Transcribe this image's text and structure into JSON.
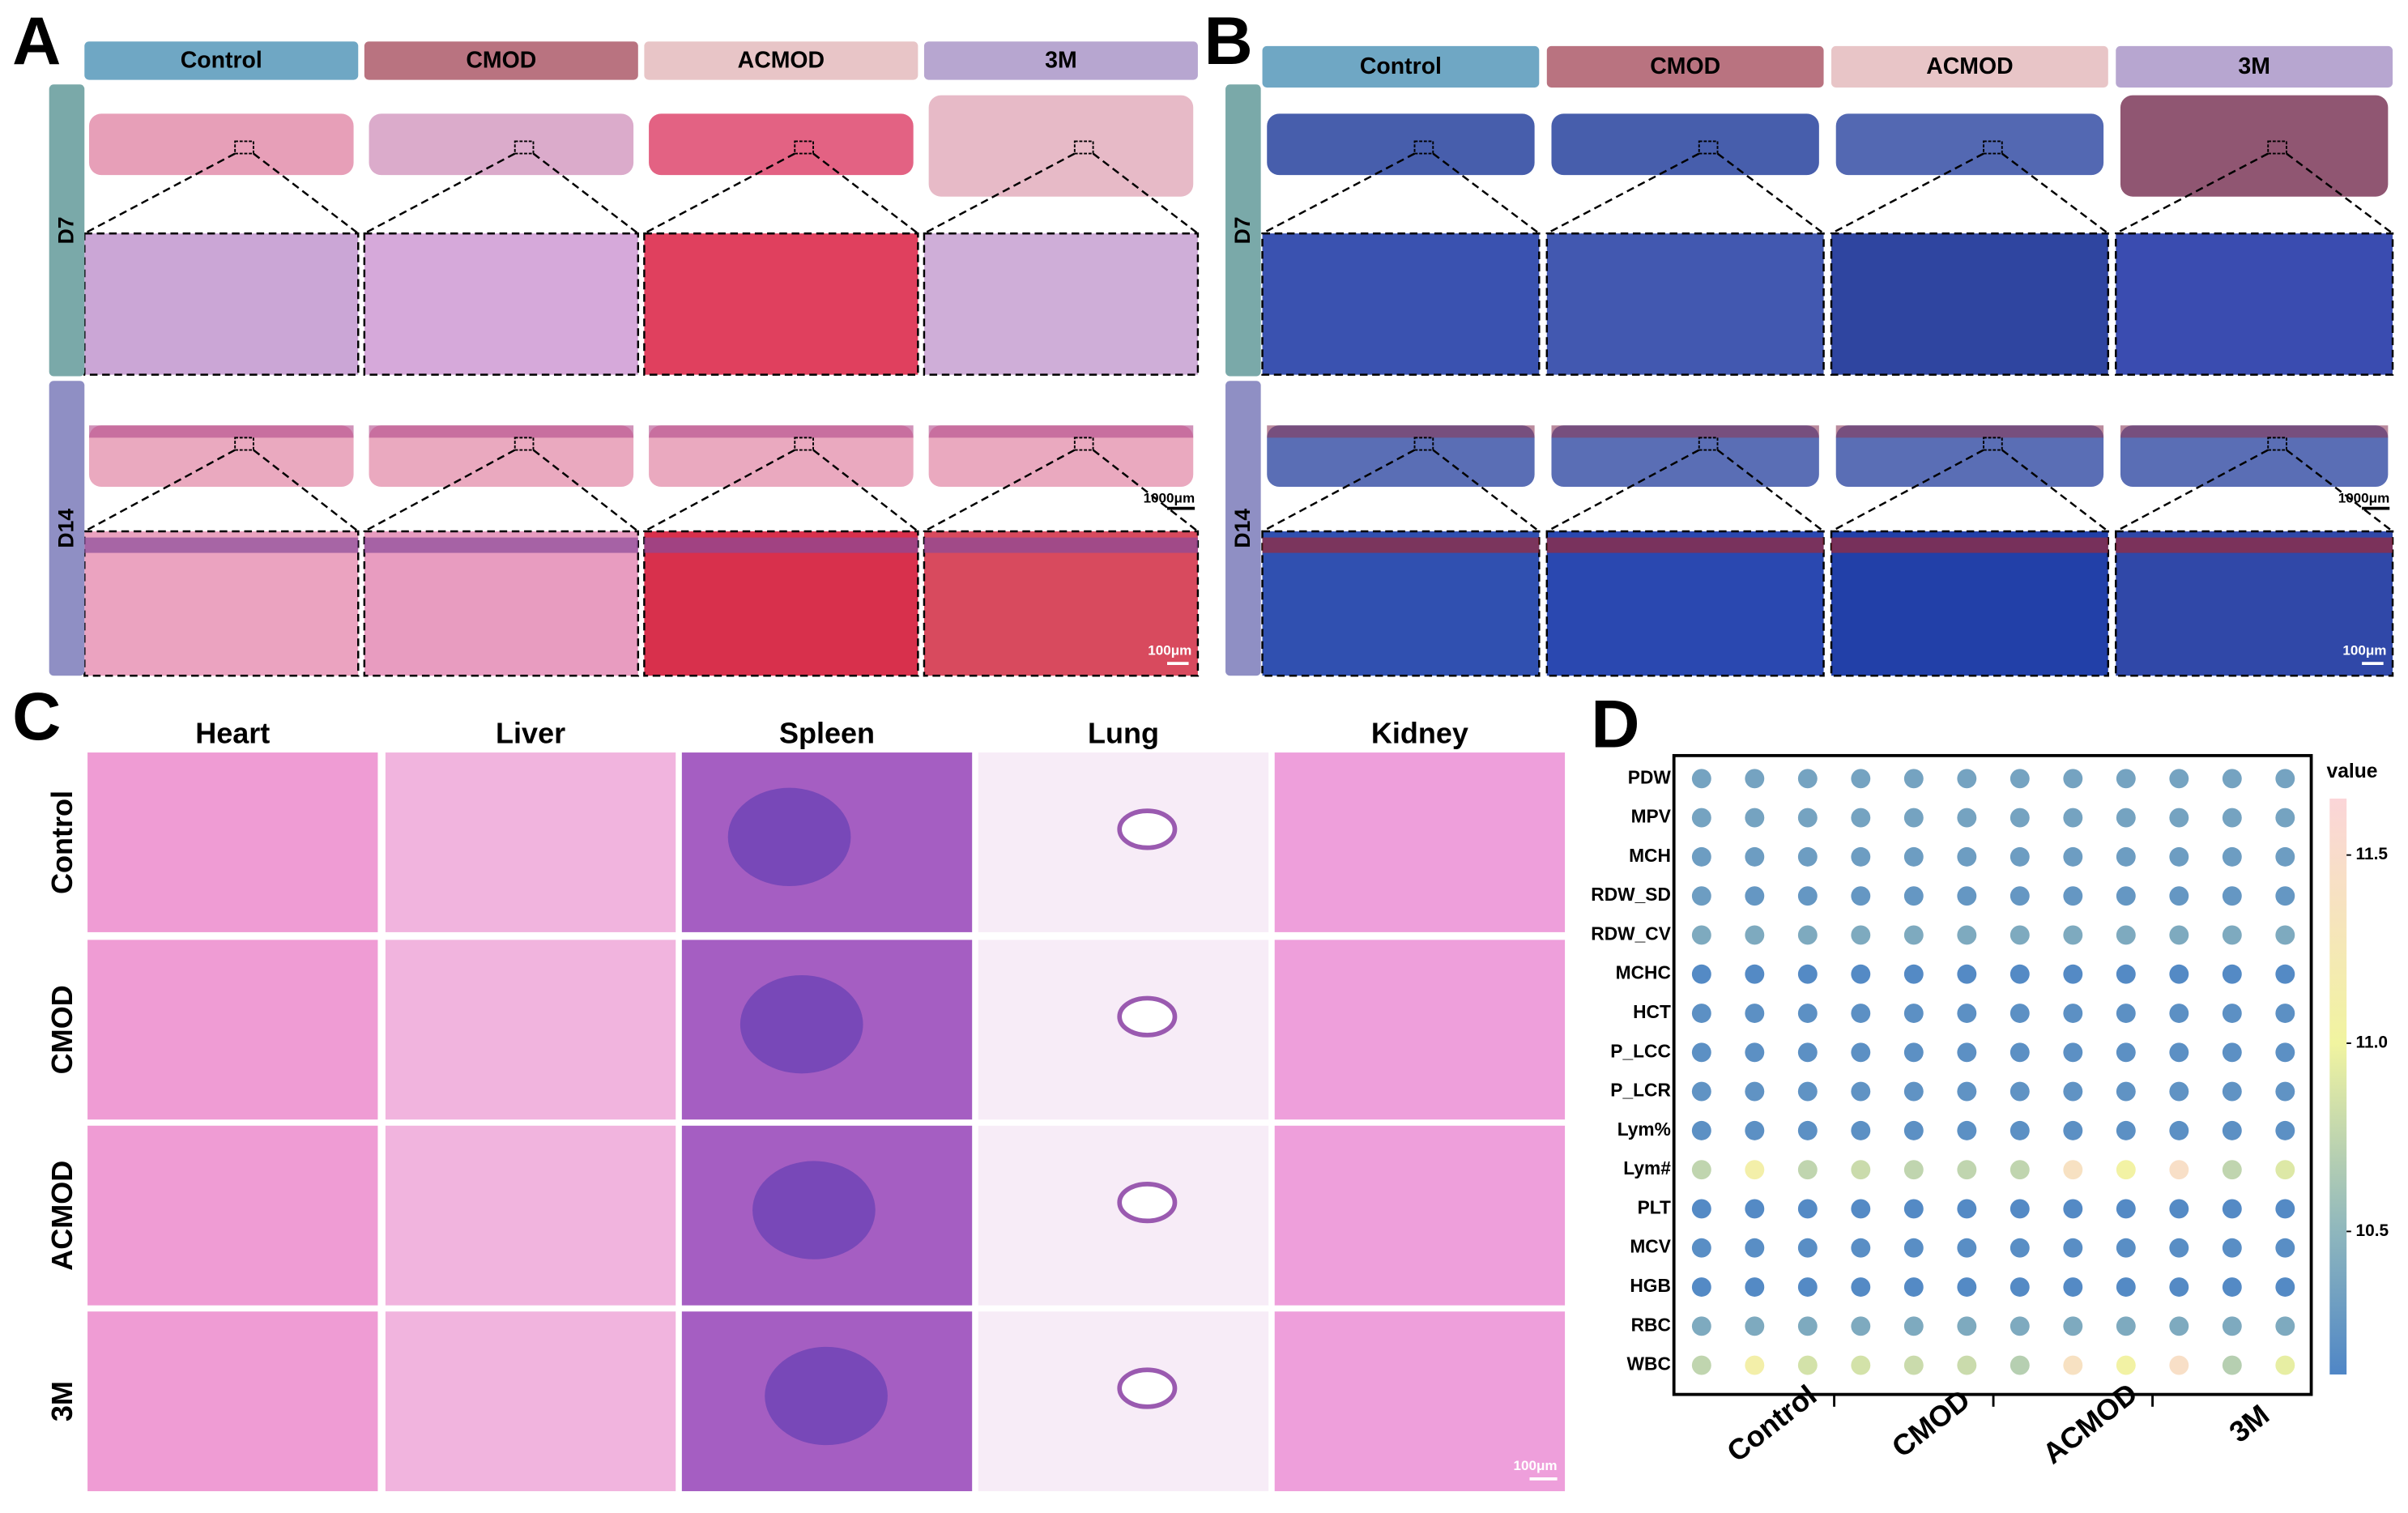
{
  "panels": {
    "A": {
      "label": "A",
      "groups": [
        "Control",
        "CMOD",
        "ACMOD",
        "3M"
      ],
      "rows": [
        "D7",
        "D14"
      ],
      "scale_overview": "1000μm",
      "scale_zoom": "100μm"
    },
    "B": {
      "label": "B",
      "groups": [
        "Control",
        "CMOD",
        "ACMOD",
        "3M"
      ],
      "rows": [
        "D7",
        "D14"
      ],
      "scale_overview": "1000μm",
      "scale_zoom": "100μm"
    },
    "C": {
      "label": "C",
      "organs": [
        "Heart",
        "Liver",
        "Spleen",
        "Lung",
        "Kidney"
      ],
      "groups": [
        "Control",
        "CMOD",
        "ACMOD",
        "3M"
      ],
      "scale": "100μm"
    }
  },
  "chart_data": {
    "type": "dotplot",
    "panel_label": "D",
    "rows": [
      "PDW",
      "MPV",
      "MCH",
      "RDW_SD",
      "RDW_CV",
      "MCHC",
      "HCT",
      "P_LCC",
      "P_LCR",
      "Lym%",
      "Lym#",
      "PLT",
      "MCV",
      "HGB",
      "RBC",
      "WBC"
    ],
    "categories": [
      null,
      "Control",
      null,
      null,
      "CMOD",
      null,
      null,
      "ACMOD",
      null,
      null,
      "3M",
      null
    ],
    "values": [
      [
        10.35,
        10.35,
        10.35,
        10.35,
        10.35,
        10.35,
        10.35,
        10.35,
        10.35,
        10.35,
        10.35,
        10.35
      ],
      [
        10.35,
        10.35,
        10.35,
        10.35,
        10.35,
        10.35,
        10.35,
        10.35,
        10.35,
        10.35,
        10.35,
        10.35
      ],
      [
        10.3,
        10.3,
        10.3,
        10.3,
        10.3,
        10.3,
        10.3,
        10.3,
        10.3,
        10.3,
        10.3,
        10.3
      ],
      [
        10.3,
        10.25,
        10.25,
        10.25,
        10.25,
        10.25,
        10.25,
        10.25,
        10.25,
        10.25,
        10.25,
        10.25
      ],
      [
        10.4,
        10.4,
        10.4,
        10.4,
        10.4,
        10.4,
        10.4,
        10.4,
        10.4,
        10.4,
        10.4,
        10.4
      ],
      [
        10.15,
        10.15,
        10.15,
        10.15,
        10.15,
        10.15,
        10.15,
        10.15,
        10.15,
        10.15,
        10.15,
        10.15
      ],
      [
        10.2,
        10.2,
        10.2,
        10.2,
        10.2,
        10.2,
        10.2,
        10.2,
        10.2,
        10.2,
        10.2,
        10.2
      ],
      [
        10.2,
        10.2,
        10.2,
        10.2,
        10.2,
        10.2,
        10.2,
        10.2,
        10.2,
        10.2,
        10.2,
        10.2
      ],
      [
        10.22,
        10.22,
        10.22,
        10.22,
        10.22,
        10.22,
        10.22,
        10.22,
        10.22,
        10.22,
        10.22,
        10.22
      ],
      [
        10.2,
        10.2,
        10.2,
        10.2,
        10.2,
        10.2,
        10.2,
        10.2,
        10.2,
        10.2,
        10.2,
        10.2
      ],
      [
        10.75,
        11.1,
        10.75,
        10.8,
        10.75,
        10.75,
        10.75,
        11.4,
        11.05,
        11.45,
        10.75,
        10.9
      ],
      [
        10.15,
        10.15,
        10.15,
        10.15,
        10.15,
        10.15,
        10.15,
        10.15,
        10.15,
        10.15,
        10.15,
        10.15
      ],
      [
        10.18,
        10.18,
        10.18,
        10.18,
        10.18,
        10.18,
        10.18,
        10.18,
        10.18,
        10.18,
        10.18,
        10.18
      ],
      [
        10.15,
        10.15,
        10.15,
        10.15,
        10.15,
        10.15,
        10.15,
        10.15,
        10.15,
        10.15,
        10.15,
        10.15
      ],
      [
        10.4,
        10.4,
        10.4,
        10.4,
        10.4,
        10.4,
        10.4,
        10.4,
        10.4,
        10.4,
        10.4,
        10.4
      ],
      [
        10.75,
        11.1,
        10.85,
        10.85,
        10.8,
        10.8,
        10.7,
        11.4,
        11.05,
        11.45,
        10.7,
        10.95
      ]
    ],
    "colorbar": {
      "label": "value",
      "lim": [
        10.12,
        11.65
      ],
      "ticks": [
        10.5,
        {
          "value": 11,
          "label": "11.0"
        },
        11.5
      ]
    }
  }
}
